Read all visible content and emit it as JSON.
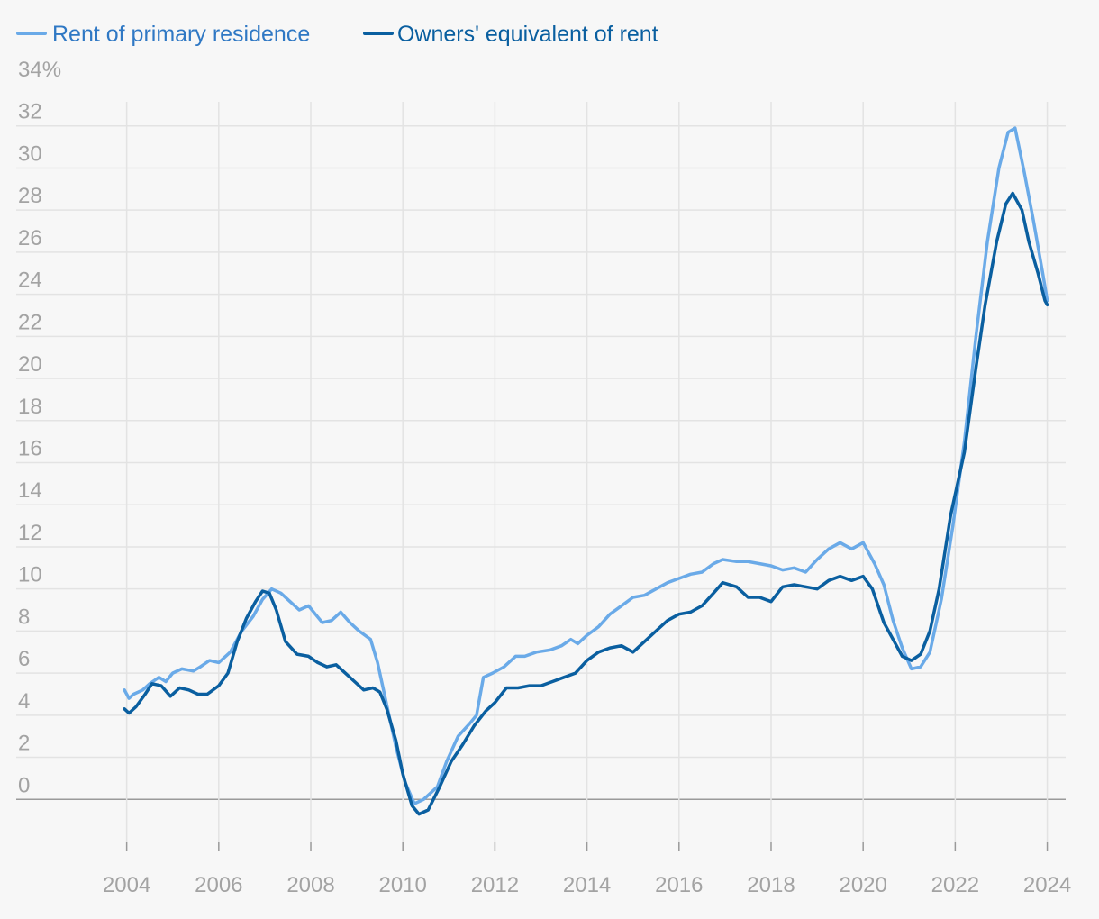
{
  "chart_data": {
    "type": "line",
    "title": "",
    "xlabel": "",
    "ylabel": "",
    "x_unit": "year",
    "xlim": [
      2001.6,
      2024.4
    ],
    "ylim": [
      -2,
      34
    ],
    "x_ticks": [
      2004,
      2006,
      2008,
      2010,
      2012,
      2014,
      2016,
      2018,
      2020,
      2022,
      2024
    ],
    "x_tick_labels": [
      "2004",
      "2006",
      "2008",
      "2010",
      "2012",
      "2014",
      "2016",
      "2018",
      "2020",
      "2022",
      "2024"
    ],
    "y_ticks": [
      0,
      2,
      4,
      6,
      8,
      10,
      12,
      14,
      16,
      18,
      20,
      22,
      24,
      26,
      28,
      30,
      32,
      34
    ],
    "y_tick_labels": [
      "0",
      "2",
      "4",
      "6",
      "8",
      "10",
      "12",
      "14",
      "16",
      "18",
      "20",
      "22",
      "24",
      "26",
      "28",
      "30",
      "32",
      "34%"
    ],
    "grid": true,
    "legend_position": "top-left",
    "series": [
      {
        "name": "Rent of primary residence",
        "color": "#6aaae8",
        "points": [
          [
            2003.95,
            5.2
          ],
          [
            2004.05,
            4.8
          ],
          [
            2004.15,
            5.0
          ],
          [
            2004.35,
            5.2
          ],
          [
            2004.5,
            5.5
          ],
          [
            2004.7,
            5.8
          ],
          [
            2004.85,
            5.6
          ],
          [
            2005.0,
            6.0
          ],
          [
            2005.2,
            6.2
          ],
          [
            2005.45,
            6.1
          ],
          [
            2005.6,
            6.3
          ],
          [
            2005.8,
            6.6
          ],
          [
            2006.0,
            6.5
          ],
          [
            2006.25,
            7.0
          ],
          [
            2006.5,
            8.0
          ],
          [
            2006.75,
            8.7
          ],
          [
            2006.95,
            9.5
          ],
          [
            2007.15,
            10.0
          ],
          [
            2007.35,
            9.8
          ],
          [
            2007.55,
            9.4
          ],
          [
            2007.75,
            9.0
          ],
          [
            2007.95,
            9.2
          ],
          [
            2008.1,
            8.8
          ],
          [
            2008.25,
            8.4
          ],
          [
            2008.45,
            8.5
          ],
          [
            2008.65,
            8.9
          ],
          [
            2008.85,
            8.4
          ],
          [
            2009.05,
            8.0
          ],
          [
            2009.3,
            7.6
          ],
          [
            2009.45,
            6.5
          ],
          [
            2009.65,
            4.5
          ],
          [
            2009.85,
            2.5
          ],
          [
            2010.05,
            0.8
          ],
          [
            2010.25,
            -0.2
          ],
          [
            2010.45,
            0.0
          ],
          [
            2010.75,
            0.6
          ],
          [
            2010.95,
            1.8
          ],
          [
            2011.2,
            3.0
          ],
          [
            2011.45,
            3.6
          ],
          [
            2011.6,
            4.0
          ],
          [
            2011.75,
            5.8
          ],
          [
            2011.95,
            6.0
          ],
          [
            2012.2,
            6.3
          ],
          [
            2012.45,
            6.8
          ],
          [
            2012.65,
            6.8
          ],
          [
            2012.9,
            7.0
          ],
          [
            2013.2,
            7.1
          ],
          [
            2013.45,
            7.3
          ],
          [
            2013.65,
            7.6
          ],
          [
            2013.8,
            7.4
          ],
          [
            2014.0,
            7.8
          ],
          [
            2014.25,
            8.2
          ],
          [
            2014.5,
            8.8
          ],
          [
            2014.75,
            9.2
          ],
          [
            2015.0,
            9.6
          ],
          [
            2015.25,
            9.7
          ],
          [
            2015.5,
            10.0
          ],
          [
            2015.75,
            10.3
          ],
          [
            2016.0,
            10.5
          ],
          [
            2016.25,
            10.7
          ],
          [
            2016.5,
            10.8
          ],
          [
            2016.75,
            11.2
          ],
          [
            2016.95,
            11.4
          ],
          [
            2017.25,
            11.3
          ],
          [
            2017.5,
            11.3
          ],
          [
            2017.75,
            11.2
          ],
          [
            2018.0,
            11.1
          ],
          [
            2018.25,
            10.9
          ],
          [
            2018.5,
            11.0
          ],
          [
            2018.75,
            10.8
          ],
          [
            2019.0,
            11.4
          ],
          [
            2019.25,
            11.9
          ],
          [
            2019.5,
            12.2
          ],
          [
            2019.75,
            11.9
          ],
          [
            2020.0,
            12.2
          ],
          [
            2020.25,
            11.2
          ],
          [
            2020.45,
            10.2
          ],
          [
            2020.65,
            8.5
          ],
          [
            2020.85,
            7.2
          ],
          [
            2021.05,
            6.2
          ],
          [
            2021.25,
            6.3
          ],
          [
            2021.45,
            7.0
          ],
          [
            2021.7,
            9.5
          ],
          [
            2021.95,
            13.0
          ],
          [
            2022.2,
            17.0
          ],
          [
            2022.45,
            22.0
          ],
          [
            2022.7,
            26.5
          ],
          [
            2022.95,
            30.0
          ],
          [
            2023.15,
            31.7
          ],
          [
            2023.3,
            31.9
          ],
          [
            2023.5,
            29.8
          ],
          [
            2023.7,
            27.5
          ],
          [
            2023.9,
            25.0
          ],
          [
            2024.0,
            23.7
          ]
        ]
      },
      {
        "name": "Owners' equivalent of rent",
        "color": "#0a5fa0",
        "points": [
          [
            2003.95,
            4.3
          ],
          [
            2004.05,
            4.1
          ],
          [
            2004.2,
            4.4
          ],
          [
            2004.4,
            5.0
          ],
          [
            2004.55,
            5.5
          ],
          [
            2004.75,
            5.4
          ],
          [
            2004.95,
            4.9
          ],
          [
            2005.15,
            5.3
          ],
          [
            2005.35,
            5.2
          ],
          [
            2005.55,
            5.0
          ],
          [
            2005.75,
            5.0
          ],
          [
            2006.0,
            5.4
          ],
          [
            2006.2,
            6.0
          ],
          [
            2006.4,
            7.5
          ],
          [
            2006.6,
            8.6
          ],
          [
            2006.8,
            9.4
          ],
          [
            2006.95,
            9.9
          ],
          [
            2007.1,
            9.8
          ],
          [
            2007.25,
            9.0
          ],
          [
            2007.45,
            7.5
          ],
          [
            2007.7,
            6.9
          ],
          [
            2007.95,
            6.8
          ],
          [
            2008.15,
            6.5
          ],
          [
            2008.35,
            6.3
          ],
          [
            2008.55,
            6.4
          ],
          [
            2008.75,
            6.0
          ],
          [
            2008.95,
            5.6
          ],
          [
            2009.15,
            5.2
          ],
          [
            2009.35,
            5.3
          ],
          [
            2009.5,
            5.1
          ],
          [
            2009.65,
            4.3
          ],
          [
            2009.85,
            2.8
          ],
          [
            2010.0,
            1.2
          ],
          [
            2010.2,
            -0.3
          ],
          [
            2010.35,
            -0.7
          ],
          [
            2010.55,
            -0.5
          ],
          [
            2010.8,
            0.6
          ],
          [
            2011.05,
            1.8
          ],
          [
            2011.3,
            2.6
          ],
          [
            2011.55,
            3.5
          ],
          [
            2011.8,
            4.2
          ],
          [
            2012.0,
            4.6
          ],
          [
            2012.25,
            5.3
          ],
          [
            2012.5,
            5.3
          ],
          [
            2012.75,
            5.4
          ],
          [
            2013.0,
            5.4
          ],
          [
            2013.25,
            5.6
          ],
          [
            2013.5,
            5.8
          ],
          [
            2013.75,
            6.0
          ],
          [
            2014.0,
            6.6
          ],
          [
            2014.25,
            7.0
          ],
          [
            2014.5,
            7.2
          ],
          [
            2014.75,
            7.3
          ],
          [
            2015.0,
            7.0
          ],
          [
            2015.25,
            7.5
          ],
          [
            2015.5,
            8.0
          ],
          [
            2015.75,
            8.5
          ],
          [
            2016.0,
            8.8
          ],
          [
            2016.25,
            8.9
          ],
          [
            2016.5,
            9.2
          ],
          [
            2016.75,
            9.8
          ],
          [
            2016.95,
            10.3
          ],
          [
            2017.25,
            10.1
          ],
          [
            2017.5,
            9.6
          ],
          [
            2017.75,
            9.6
          ],
          [
            2018.0,
            9.4
          ],
          [
            2018.25,
            10.1
          ],
          [
            2018.5,
            10.2
          ],
          [
            2018.75,
            10.1
          ],
          [
            2019.0,
            10.0
          ],
          [
            2019.25,
            10.4
          ],
          [
            2019.5,
            10.6
          ],
          [
            2019.75,
            10.4
          ],
          [
            2020.0,
            10.6
          ],
          [
            2020.2,
            10.0
          ],
          [
            2020.45,
            8.4
          ],
          [
            2020.65,
            7.6
          ],
          [
            2020.85,
            6.8
          ],
          [
            2021.05,
            6.6
          ],
          [
            2021.25,
            6.9
          ],
          [
            2021.45,
            8.0
          ],
          [
            2021.65,
            10.0
          ],
          [
            2021.9,
            13.5
          ],
          [
            2022.2,
            16.5
          ],
          [
            2022.45,
            20.5
          ],
          [
            2022.65,
            23.5
          ],
          [
            2022.9,
            26.5
          ],
          [
            2023.1,
            28.3
          ],
          [
            2023.25,
            28.8
          ],
          [
            2023.45,
            28.0
          ],
          [
            2023.6,
            26.5
          ],
          [
            2023.8,
            25.0
          ],
          [
            2023.95,
            23.7
          ],
          [
            2024.0,
            23.5
          ]
        ]
      }
    ]
  }
}
